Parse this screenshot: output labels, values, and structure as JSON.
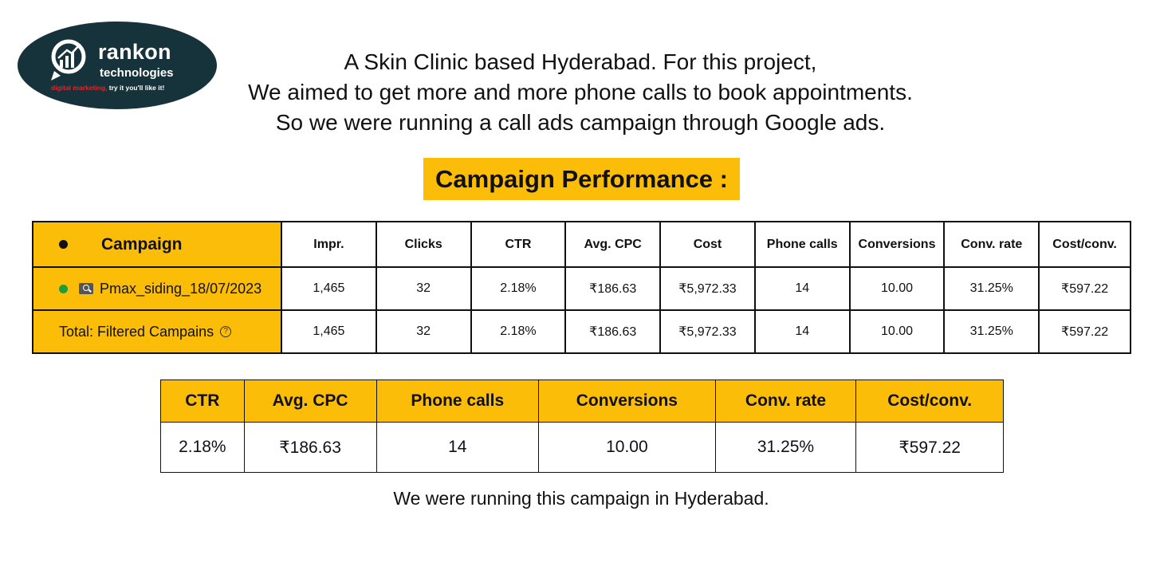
{
  "logo": {
    "name": "rankon",
    "sub": "technologies",
    "tag_red": "digital marketing,",
    "tag_rest": " try it you'll like it!"
  },
  "intro": [
    "A Skin Clinic based Hyderabad. For this project,",
    "We aimed to get more and more phone calls to book appointments.",
    "So we were running a call ads campaign through Google ads."
  ],
  "performance_title": "Campaign Performance :",
  "main_table": {
    "headers": [
      "Campaign",
      "Impr.",
      "Clicks",
      "CTR",
      "Avg. CPC",
      "Cost",
      "Phone calls",
      "Conversions",
      "Conv. rate",
      "Cost/conv."
    ],
    "rows": [
      {
        "campaign": "Pmax_siding_18/07/2023",
        "values": [
          "1,465",
          "32",
          "2.18%",
          "₹186.63",
          "₹5,972.33",
          "14",
          "10.00",
          "31.25%",
          "₹597.22"
        ]
      },
      {
        "campaign": "Total: Filtered Campains",
        "values": [
          "1,465",
          "32",
          "2.18%",
          "₹186.63",
          "₹5,972.33",
          "14",
          "10.00",
          "31.25%",
          "₹597.22"
        ]
      }
    ]
  },
  "summary_table": {
    "headers": [
      "CTR",
      "Avg. CPC",
      "Phone calls",
      "Conversions",
      "Conv. rate",
      "Cost/conv."
    ],
    "values": [
      "2.18%",
      "₹186.63",
      "14",
      "10.00",
      "31.25%",
      "₹597.22"
    ]
  },
  "footer": "We were running this campaign in Hyderabad.",
  "colors": {
    "accent": "#fbbd08",
    "logo_bg": "#16323a",
    "status_dot": "#1e9e3a"
  }
}
